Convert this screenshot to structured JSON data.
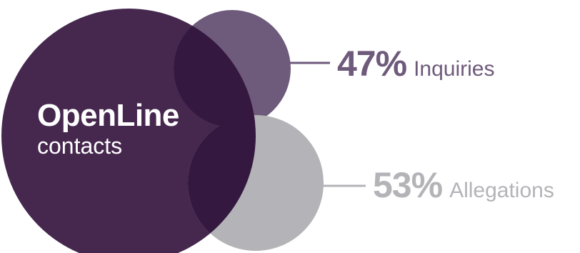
{
  "colors": {
    "primary": "#46284f",
    "overlap": "#35183f",
    "inquiries": "#6e5a7b",
    "allegations": "#b4b4b8",
    "inquiries_text": "#6e5a7b",
    "allegations_text": "#b4b4b8",
    "label_text": "#ffffff"
  },
  "main": {
    "title": "OpenLine",
    "subtitle": "contacts"
  },
  "chart_data": {
    "type": "pie",
    "title": "",
    "categories": [
      "Inquiries",
      "Allegations"
    ],
    "values": [
      47,
      53
    ],
    "unit": "%",
    "labels": [
      {
        "percent": "47%",
        "name": "Inquiries"
      },
      {
        "percent": "53%",
        "name": "Allegations"
      }
    ]
  }
}
